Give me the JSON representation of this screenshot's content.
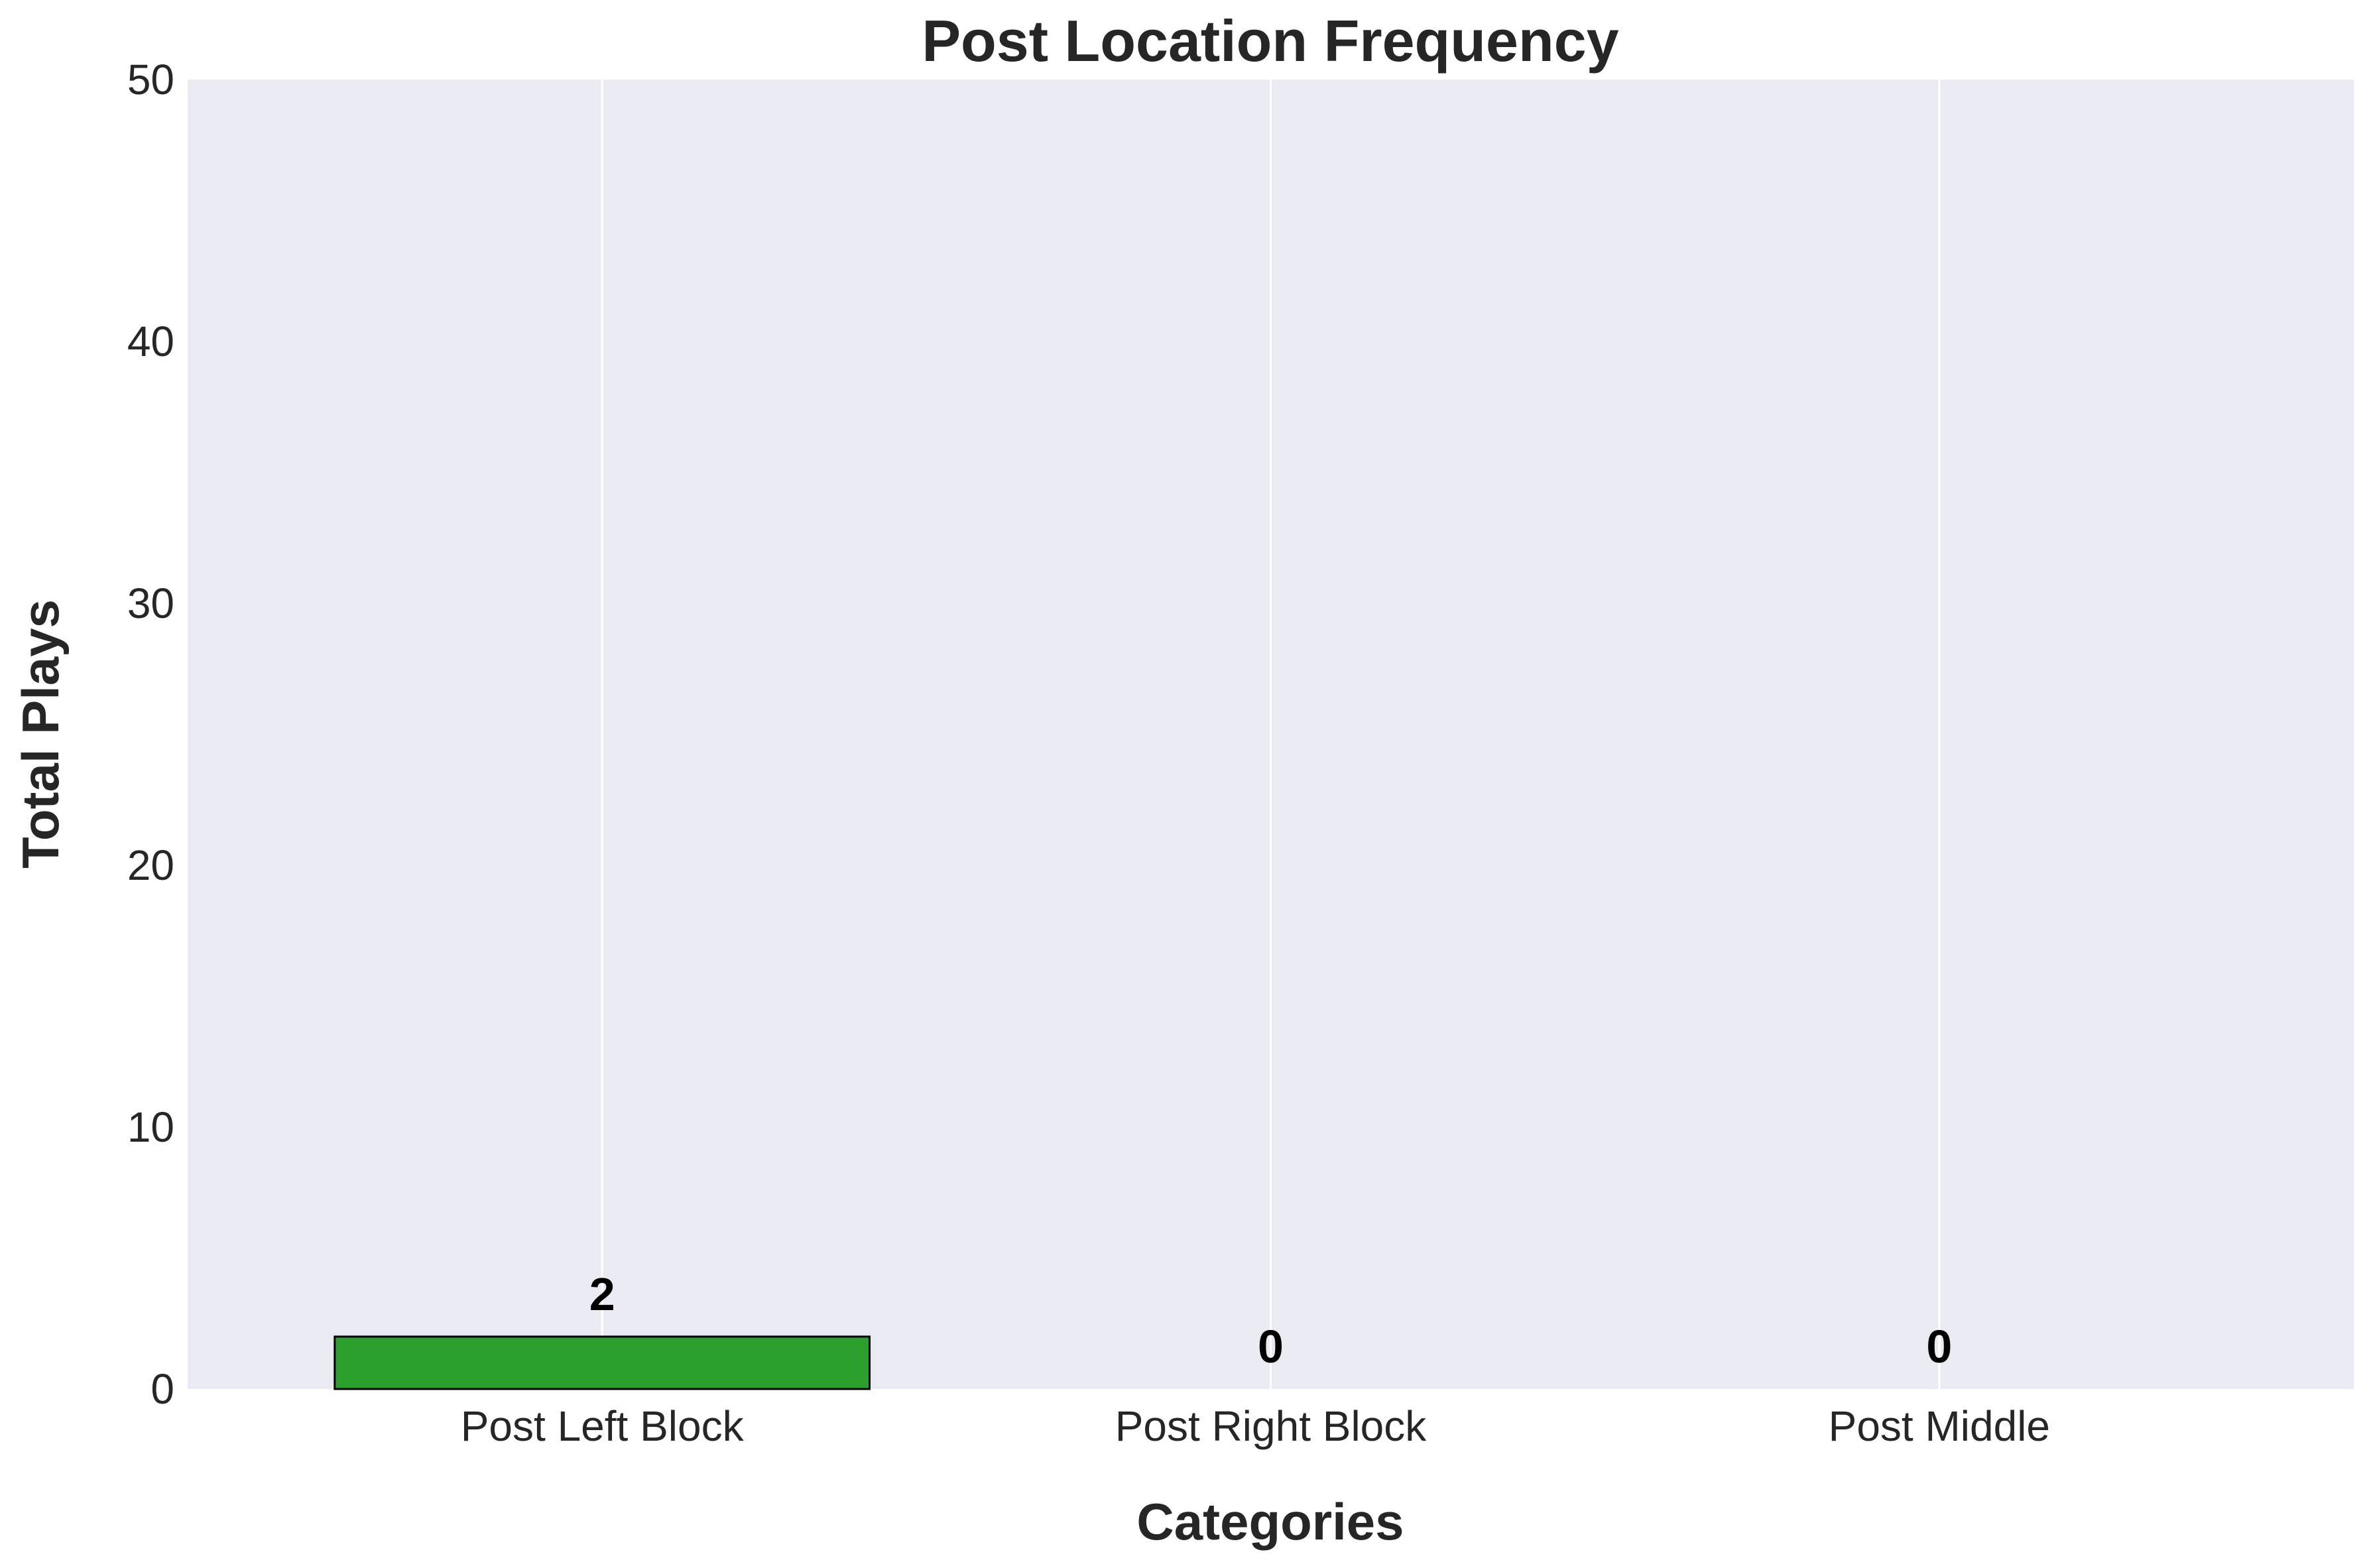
{
  "chart_data": {
    "type": "bar",
    "title": "Post Location Frequency",
    "xlabel": "Categories",
    "ylabel": "Total Plays",
    "categories": [
      "Post Left Block",
      "Post Right Block",
      "Post Middle"
    ],
    "values": [
      2,
      0,
      0
    ],
    "data_labels": [
      "2",
      "0",
      "0"
    ],
    "ylim": [
      0,
      50
    ],
    "yticks": [
      0,
      10,
      20,
      30,
      40,
      50
    ],
    "ytick_labels": [
      "0",
      "10",
      "20",
      "30",
      "40",
      "50"
    ],
    "grid": "vertical",
    "colors": {
      "background": "#eaeaf2",
      "grid": "#ffffff",
      "bar": "#2ca02c",
      "bar_edge": "#000000"
    }
  }
}
